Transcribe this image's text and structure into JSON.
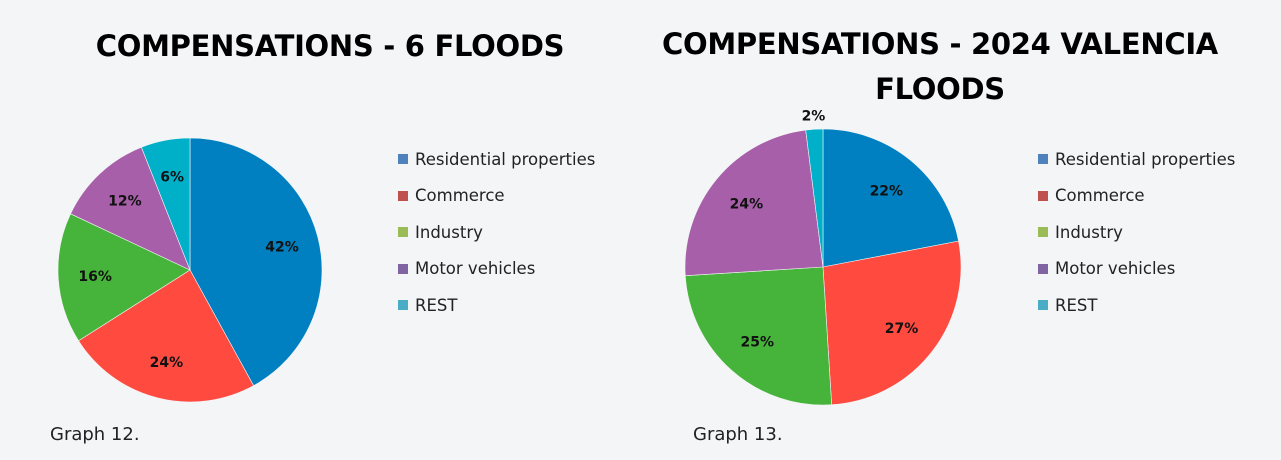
{
  "chart_data": [
    {
      "type": "pie",
      "title": "COMPENSATIONS - 6 FLOODS",
      "caption": "Graph 12.",
      "categories": [
        "Residential properties",
        "Commerce",
        "Industry",
        "Motor vehicles",
        "REST"
      ],
      "values": [
        42,
        24,
        16,
        12,
        6
      ],
      "labels": [
        "42%",
        "24%",
        "16%",
        "12%",
        "6%"
      ],
      "legend_position": "right"
    },
    {
      "type": "pie",
      "title": "COMPENSATIONS - 2024 VALENCIA FLOODS",
      "caption": "Graph 13.",
      "categories": [
        "Residential properties",
        "Commerce",
        "Industry",
        "Motor vehicles",
        "REST"
      ],
      "values": [
        22,
        27,
        25,
        24,
        2
      ],
      "labels": [
        "22%",
        "27%",
        "25%",
        "24%",
        "2%"
      ],
      "legend_position": "right"
    }
  ],
  "colors": {
    "slices": [
      "#0080c0",
      "#ff4a40",
      "#46b43a",
      "#a65fa8",
      "#00b0c8"
    ],
    "legend": [
      "#4f81bd",
      "#c0504d",
      "#9bbb59",
      "#8064a2",
      "#4bacc6"
    ]
  }
}
